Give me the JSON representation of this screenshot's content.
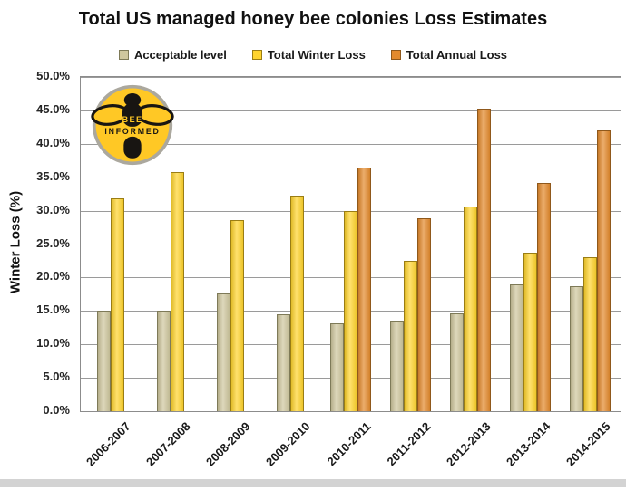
{
  "title": "Total US managed honey bee colonies Loss Estimates",
  "logo": {
    "line1": "BEE",
    "line2": "INFORMED",
    "circle_color": "#FFC825",
    "ring_color": "#ABA89E",
    "bee_color": "#181512"
  },
  "chart_data": {
    "type": "bar",
    "title": "Total US managed honey bee colonies Loss Estimates",
    "xlabel": "",
    "ylabel": "Winter Loss (%)",
    "ylim": [
      0,
      50
    ],
    "ytick_step": 5,
    "ytick_labels": [
      "0.0%",
      "5.0%",
      "10.0%",
      "15.0%",
      "20.0%",
      "25.0%",
      "30.0%",
      "35.0%",
      "40.0%",
      "45.0%",
      "50.0%"
    ],
    "grid": true,
    "legend_position": "top",
    "categories": [
      "2006-2007",
      "2007-2008",
      "2008-2009",
      "2009-2010",
      "2010-2011",
      "2011-2012",
      "2012-2013",
      "2013-2014",
      "2014-2015"
    ],
    "series": [
      {
        "name": "Acceptable level",
        "color": "#CFC79E",
        "border": "#7E7A58",
        "values": [
          15.0,
          15.0,
          17.6,
          14.5,
          13.2,
          13.6,
          14.6,
          19.0,
          18.7
        ]
      },
      {
        "name": "Total Winter Loss",
        "color": "#FFD42E",
        "border": "#9A7D14",
        "values": [
          31.8,
          35.8,
          28.6,
          32.2,
          29.9,
          22.5,
          30.6,
          23.7,
          23.1
        ]
      },
      {
        "name": "Total Annual Loss",
        "color": "#E38A2D",
        "border": "#8F581B",
        "values": [
          null,
          null,
          null,
          null,
          36.4,
          28.9,
          45.2,
          34.1,
          42.0
        ]
      }
    ]
  }
}
